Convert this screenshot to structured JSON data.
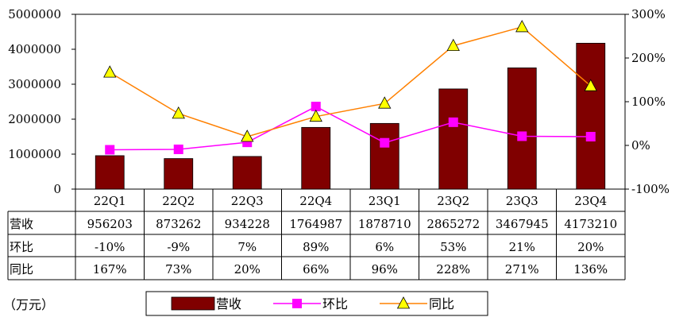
{
  "unit_label": "（万元）",
  "chart_data": {
    "type": "bar",
    "categories": [
      "22Q1",
      "22Q2",
      "22Q3",
      "22Q4",
      "23Q1",
      "23Q2",
      "23Q3",
      "23Q4"
    ],
    "series": [
      {
        "name": "营收",
        "kind": "bar",
        "axis": "left",
        "values": [
          956203,
          873262,
          934228,
          1764987,
          1878710,
          2865272,
          3467945,
          4173210
        ],
        "color": "#800000"
      },
      {
        "name": "环比",
        "kind": "line",
        "axis": "right",
        "values": [
          -10,
          -9,
          7,
          89,
          6,
          53,
          21,
          20
        ],
        "color": "#ff00ff",
        "marker": "square"
      },
      {
        "name": "同比",
        "kind": "line",
        "axis": "right",
        "values": [
          167,
          73,
          20,
          66,
          96,
          228,
          271,
          136
        ],
        "color": "#ff8000",
        "marker": "triangle",
        "marker_fill": "#ffff00"
      }
    ],
    "y_left": {
      "ylim": [
        0,
        5000000
      ],
      "ticks": [
        "0",
        "1000000",
        "2000000",
        "3000000",
        "4000000",
        "5000000"
      ]
    },
    "y_right": {
      "ylim": [
        -100,
        300
      ],
      "ticks": [
        "-100%",
        "0%",
        "100%",
        "200%",
        "300%"
      ]
    },
    "table": {
      "rows": [
        {
          "label": "营收",
          "cells": [
            "956203",
            "873262",
            "934228",
            "1764987",
            "1878710",
            "2865272",
            "3467945",
            "4173210"
          ]
        },
        {
          "label": "环比",
          "cells": [
            "-10%",
            "-9%",
            "7%",
            "89%",
            "6%",
            "53%",
            "21%",
            "20%"
          ]
        },
        {
          "label": "同比",
          "cells": [
            "167%",
            "73%",
            "20%",
            "66%",
            "96%",
            "228%",
            "271%",
            "136%"
          ]
        }
      ]
    },
    "legend": [
      "营收",
      "环比",
      "同比"
    ],
    "legend_position": "bottom",
    "grid": false
  }
}
